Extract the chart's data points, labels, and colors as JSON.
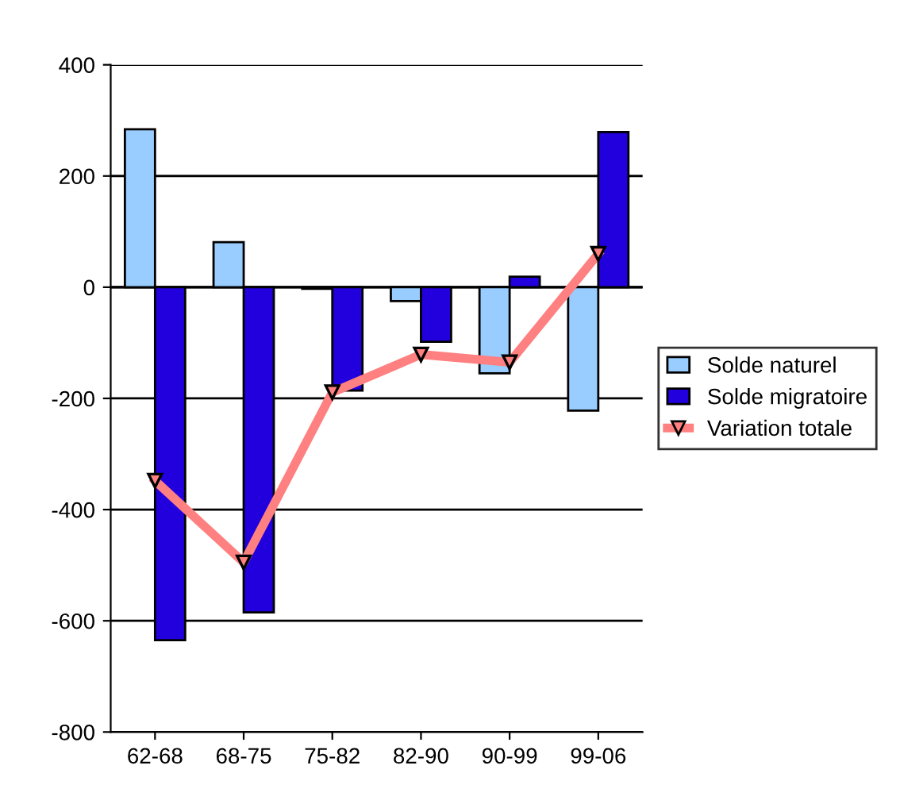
{
  "chart_data": {
    "type": "bar",
    "categories": [
      "62-68",
      "68-75",
      "75-82",
      "82-90",
      "90-99",
      "99-06"
    ],
    "series": [
      {
        "name": "Solde naturel",
        "color": "#99ccff",
        "values": [
          284,
          81,
          -3,
          -25,
          -155,
          -222
        ]
      },
      {
        "name": "Solde migratoire",
        "color": "#2200dd",
        "values": [
          -635,
          -585,
          -186,
          -98,
          19,
          279
        ]
      },
      {
        "name": "Variation totale",
        "color": "#ff8080",
        "type": "line",
        "marker": "triangle",
        "values": [
          -348,
          -495,
          -189,
          -121,
          -135,
          60
        ]
      }
    ],
    "ylim": [
      -800,
      400
    ],
    "yticks": [
      -800,
      -600,
      -400,
      -200,
      0,
      200,
      400
    ],
    "grid": "y",
    "legend": "right"
  }
}
